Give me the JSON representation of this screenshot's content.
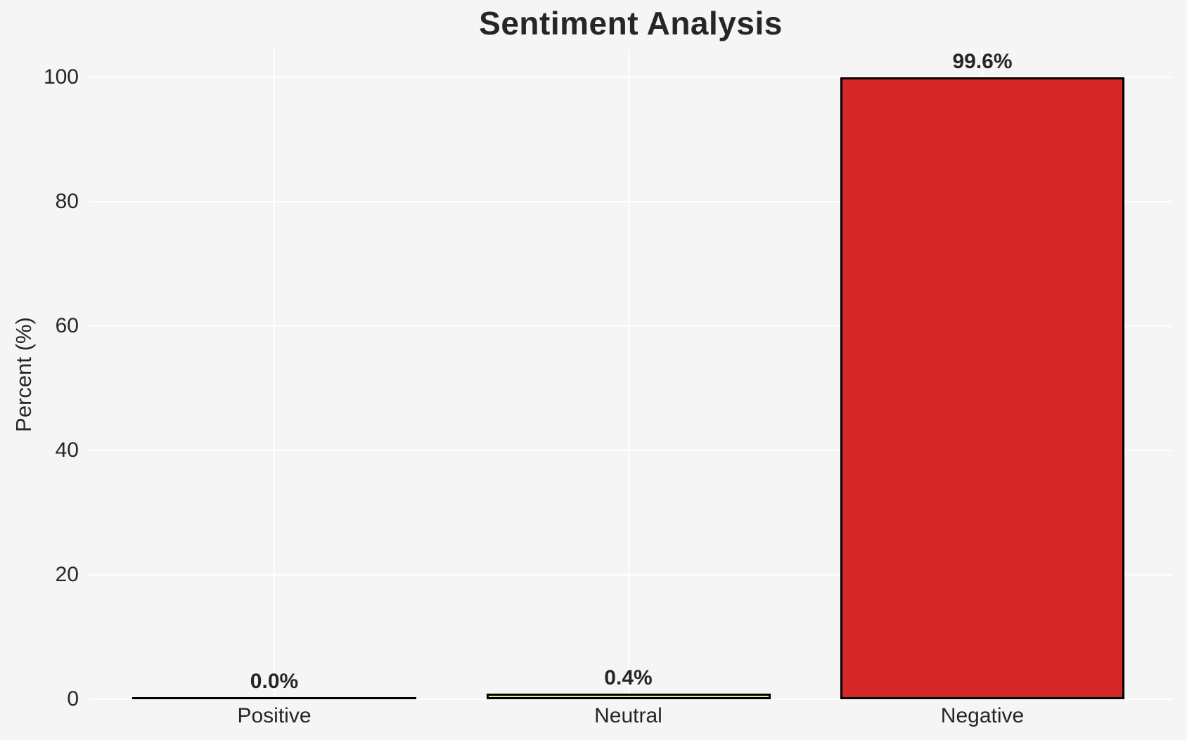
{
  "chart_data": {
    "type": "bar",
    "title": "Sentiment Analysis",
    "xlabel": "",
    "ylabel": "Percent (%)",
    "categories": [
      "Positive",
      "Neutral",
      "Negative"
    ],
    "values": [
      0.0,
      0.4,
      99.6
    ],
    "value_labels": [
      "0.0%",
      "0.4%",
      "99.6%"
    ],
    "bar_fill_colors": [
      "none",
      "#f0e68c",
      "#d62728"
    ],
    "bar_edge_color": "#000000",
    "yticks": [
      "0",
      "20",
      "40",
      "60",
      "80",
      "100"
    ],
    "ytick_values": [
      0,
      20,
      40,
      60,
      80,
      100
    ],
    "ylim": [
      0,
      104.5
    ],
    "grid": true,
    "gridline_color": "#ffffff",
    "background_color": "#f5f5f5",
    "text_color": "#262626",
    "legend_position": "none"
  }
}
